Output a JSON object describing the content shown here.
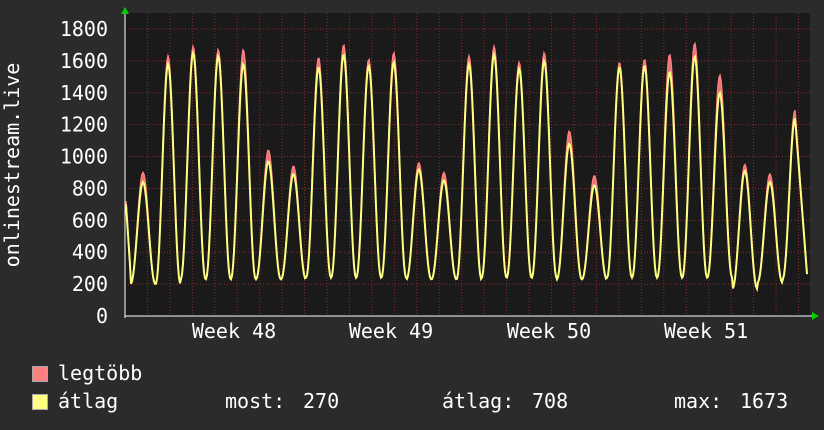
{
  "chart_data": {
    "type": "line",
    "ylabel": "onlinestream.live",
    "ylim": [
      0,
      1800
    ],
    "yticks": [
      0,
      200,
      400,
      600,
      800,
      1000,
      1200,
      1400,
      1600,
      1800
    ],
    "xticks": [
      "Week 48",
      "Week 49",
      "Week 50",
      "Week 51"
    ],
    "grid": true,
    "legend_position": "bottom",
    "daily_peaks": {
      "max": [
        900,
        1630,
        1690,
        1670,
        1670,
        1040,
        940,
        1620,
        1700,
        1610,
        1650,
        960,
        900,
        1630,
        1690,
        1590,
        1650,
        1160,
        880,
        1590,
        1610,
        1640,
        1710,
        1510,
        950,
        890,
        1290
      ],
      "avg": [
        850,
        1590,
        1660,
        1640,
        1590,
        980,
        900,
        1570,
        1650,
        1580,
        1600,
        930,
        860,
        1590,
        1650,
        1560,
        1610,
        1090,
        830,
        1570,
        1580,
        1540,
        1640,
        1410,
        920,
        850,
        1250
      ]
    },
    "daily_troughs": [
      200,
      200,
      230,
      230,
      230,
      230,
      230,
      240,
      240,
      240,
      240,
      230,
      230,
      230,
      240,
      240,
      240,
      230,
      230,
      240,
      240,
      240,
      240,
      240,
      170,
      210,
      230
    ],
    "series": [
      {
        "name": "legtöbb",
        "color": "#ff7f7f"
      },
      {
        "name": "átlag",
        "color": "#ffff80"
      }
    ],
    "stats": {
      "current_label": "most:",
      "current_value": "270",
      "avg_label": "átlag:",
      "avg_value": "708",
      "max_label": "max:",
      "max_value": "1673"
    }
  }
}
